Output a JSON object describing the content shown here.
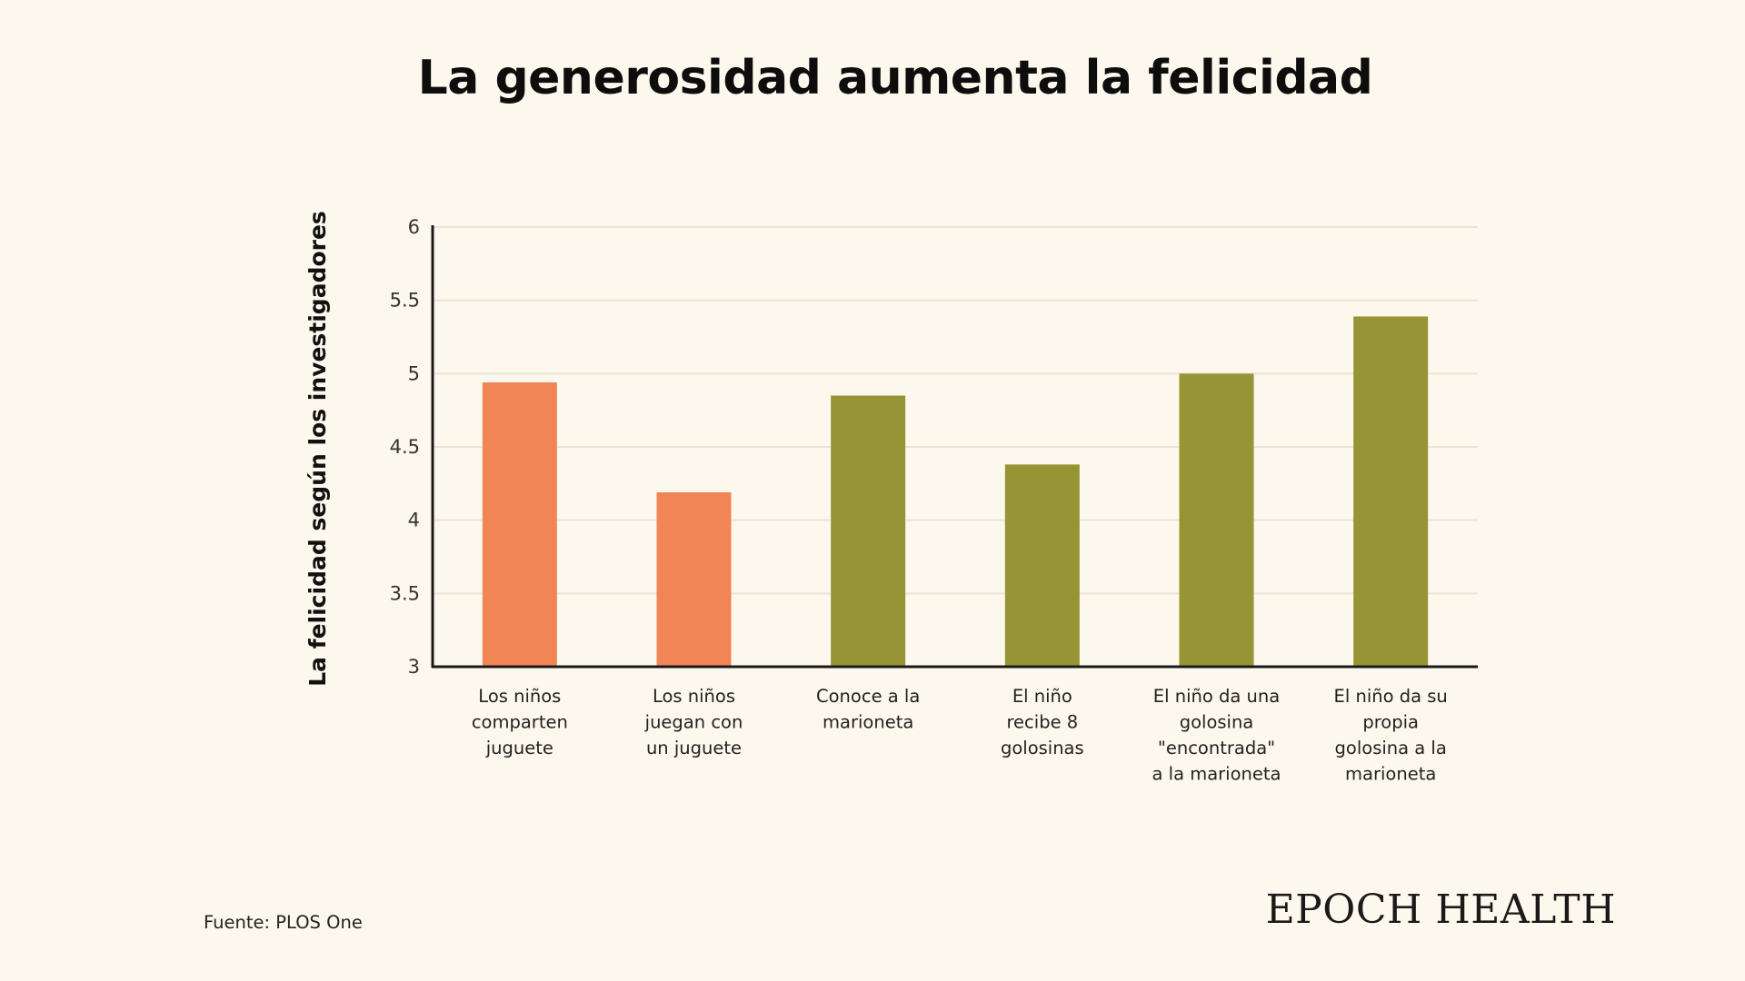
{
  "chart_data": {
    "type": "bar",
    "title": "La generosidad aumenta la felicidad",
    "ylabel": "La felicidad según los investigadores",
    "xlabel": "",
    "ylim": [
      3,
      6
    ],
    "yticks": [
      "3",
      "3.5",
      "4",
      "4.5",
      "5",
      "5.5",
      "6"
    ],
    "grid": true,
    "categories": [
      [
        "Los niños",
        "comparten",
        "juguete"
      ],
      [
        "Los niños",
        "juegan con",
        "un juguete"
      ],
      [
        "Conoce a la",
        "marioneta"
      ],
      [
        "El niño",
        "recibe 8",
        "golosinas"
      ],
      [
        "El niño da una",
        "golosina",
        "\"encontrada\"",
        "a la marioneta"
      ],
      [
        "El niño da su",
        "propia",
        "golosina a la",
        "marioneta"
      ]
    ],
    "values": [
      4.94,
      4.19,
      4.85,
      4.38,
      5.0,
      5.39
    ],
    "bar_colors": [
      "#f28555",
      "#f28555",
      "#969435",
      "#969435",
      "#969435",
      "#969435"
    ]
  },
  "footer": {
    "source": "Fuente: PLOS One",
    "brand": "EPOCH HEALTH"
  },
  "colors": {
    "background": "#fdf8ed",
    "axis": "#1a1a1a",
    "grid": "#ebe4d6"
  }
}
